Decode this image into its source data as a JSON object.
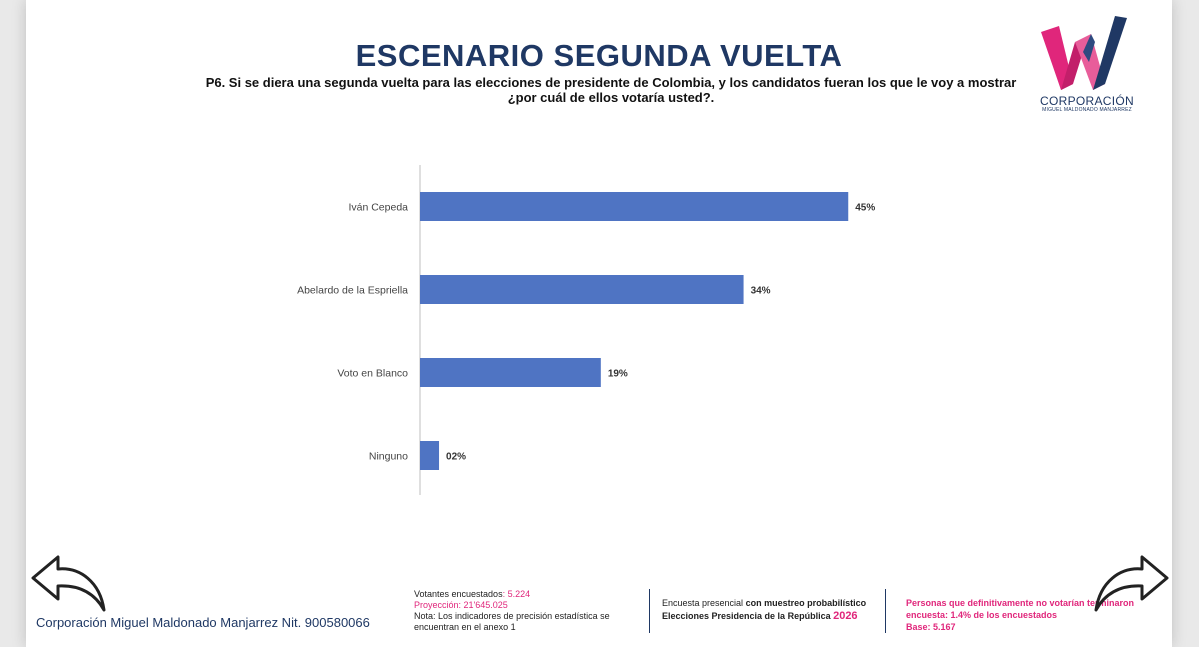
{
  "title": "ESCENARIO SEGUNDA VUELTA",
  "question_line1": "P6. Si se diera una segunda vuelta para las elecciones de presidente de Colombia, y los candidatos fueran los que le voy a mostrar",
  "question_line2": "¿por cuál de ellos votaría usted?.",
  "logo": {
    "name": "CORPORACIÓN",
    "sub": "MIGUEL MALDONADO MANJARREZ"
  },
  "chart_data": {
    "type": "bar",
    "orientation": "horizontal",
    "categories": [
      "Iván Cepeda",
      "Abelardo de la Espriella",
      "Voto en Blanco",
      "Ninguno"
    ],
    "values": [
      45,
      34,
      19,
      2
    ],
    "value_labels": [
      "45%",
      "34%",
      "19%",
      "02%"
    ],
    "xlim": [
      0,
      60
    ],
    "grid": false,
    "bar_color": "#4f74c3"
  },
  "footer": {
    "company": "Corporación Miguel Maldonado Manjarrez Nit. 900580066",
    "votantes_label": "Votantes encuestados",
    "votantes_value": ": 5.224",
    "proyeccion": "Proyección: 21'645.025",
    "nota": "Nota: Los indicadores de precisión estadística se encuentran en el anexo 1",
    "encuesta_prefix": "Encuesta presencial ",
    "encuesta_bold": "con muestreo probabilístico",
    "elecciones": "Elecciones Presidencia de la República ",
    "year": "2026",
    "personas": "Personas que definitivamente no votarían terminaron encuesta: 1.4% de los encuestados",
    "base": "Base: 5.167"
  },
  "nav": {
    "back": "back-arrow-icon",
    "forward": "forward-arrow-icon"
  }
}
